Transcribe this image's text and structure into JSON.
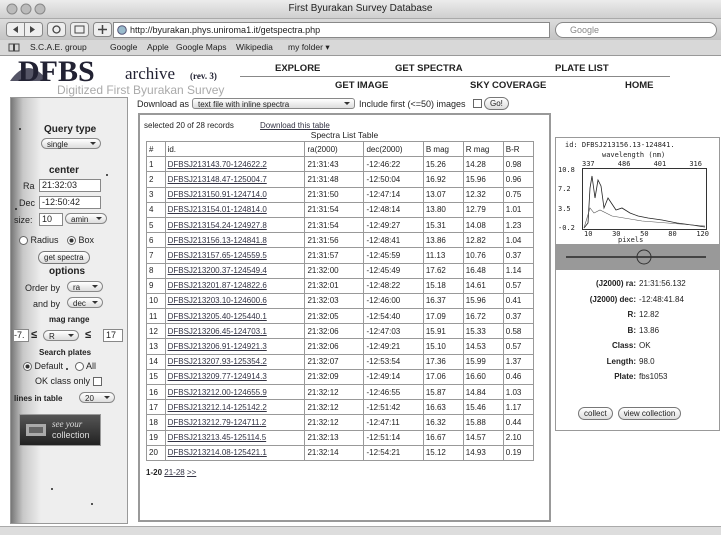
{
  "browser": {
    "title": "First Byurakan Survey Database",
    "url": "http://byurakan.phys.uniroma1.it/getspectra.php",
    "search": "Google"
  },
  "bookmarks": [
    "S.C.A.E. group",
    "Google",
    "Apple",
    "Google Maps",
    "Wikipedia",
    "my folder ▾"
  ],
  "logo": {
    "name": "DFBS",
    "archive": "archive",
    "rev": "(rev. 3)",
    "subtitle": "Digitized First Byurakan Survey"
  },
  "nav": [
    "EXPLORE",
    "GET SPECTRA",
    "PLATE LIST",
    "GET IMAGE",
    "SKY COVERAGE",
    "HOME"
  ],
  "download": {
    "label": "Download as",
    "format": "text file with inline spectra",
    "include": "Include first (<=50) images",
    "go": "Go!"
  },
  "sidebar": {
    "query_type": "Query type",
    "query_value": "single",
    "center": "center",
    "ra_label": "Ra",
    "ra_value": "21:32:03",
    "dec_label": "Dec",
    "dec_value": "-12:50:42",
    "size_label": "size:",
    "size_value": "10",
    "size_unit": "amin",
    "radius": "Radius",
    "box": "Box",
    "get_spectra": "get spectra",
    "options": "options",
    "order_by": "Order by",
    "order_value": "ra",
    "and_by": "and by",
    "and_value": "dec",
    "mag_range": "mag range",
    "mag_min": "-7.",
    "le1": "≤",
    "mag_band": "R",
    "le2": "≤",
    "mag_max": "17",
    "search_plates": "Search plates",
    "default": "Default",
    "all": "All",
    "ok_class": "OK class only",
    "lines_label": "lines in table",
    "lines_value": "20",
    "collection_1": "see your",
    "collection_2": "collection"
  },
  "table": {
    "status": "selected 20 of 28 records",
    "download_link": "Download this table",
    "caption": "Spectra List Table",
    "headers": [
      "#",
      "id.",
      "ra(2000)",
      "dec(2000)",
      "B mag",
      "R mag",
      "B-R"
    ],
    "rows": [
      [
        "1",
        "DFBSJ213143.70-124622.2",
        "21:31:43",
        "-12:46:22",
        "15.26",
        "14.28",
        "0.98"
      ],
      [
        "2",
        "DFBSJ213148.47-125004.7",
        "21:31:48",
        "-12:50:04",
        "16.92",
        "15.96",
        "0.96"
      ],
      [
        "3",
        "DFBSJ213150.91-124714.0",
        "21:31:50",
        "-12:47:14",
        "13.07",
        "12.32",
        "0.75"
      ],
      [
        "4",
        "DFBSJ213154.01-124814.0",
        "21:31:54",
        "-12:48:14",
        "13.80",
        "12.79",
        "1.01"
      ],
      [
        "5",
        "DFBSJ213154.24-124927.8",
        "21:31:54",
        "-12:49:27",
        "15.31",
        "14.08",
        "1.23"
      ],
      [
        "6",
        "DFBSJ213156.13-124841.8",
        "21:31:56",
        "-12:48:41",
        "13.86",
        "12.82",
        "1.04"
      ],
      [
        "7",
        "DFBSJ213157.65-124559.5",
        "21:31:57",
        "-12:45:59",
        "11.13",
        "10.76",
        "0.37"
      ],
      [
        "8",
        "DFBSJ213200.37-124549.4",
        "21:32:00",
        "-12:45:49",
        "17.62",
        "16.48",
        "1.14"
      ],
      [
        "9",
        "DFBSJ213201.87-124822.6",
        "21:32:01",
        "-12:48:22",
        "15.18",
        "14.61",
        "0.57"
      ],
      [
        "10",
        "DFBSJ213203.10-124600.6",
        "21:32:03",
        "-12:46:00",
        "16.37",
        "15.96",
        "0.41"
      ],
      [
        "11",
        "DFBSJ213205.40-125440.1",
        "21:32:05",
        "-12:54:40",
        "17.09",
        "16.72",
        "0.37"
      ],
      [
        "12",
        "DFBSJ213206.45-124703.1",
        "21:32:06",
        "-12:47:03",
        "15.91",
        "15.33",
        "0.58"
      ],
      [
        "13",
        "DFBSJ213206.91-124921.3",
        "21:32:06",
        "-12:49:21",
        "15.10",
        "14.53",
        "0.57"
      ],
      [
        "14",
        "DFBSJ213207.93-125354.2",
        "21:32:07",
        "-12:53:54",
        "17.36",
        "15.99",
        "1.37"
      ],
      [
        "15",
        "DFBSJ213209.77-124914.3",
        "21:32:09",
        "-12:49:14",
        "17.06",
        "16.60",
        "0.46"
      ],
      [
        "16",
        "DFBSJ213212.00-124655.9",
        "21:32:12",
        "-12:46:55",
        "15.87",
        "14.84",
        "1.03"
      ],
      [
        "17",
        "DFBSJ213212.14-125142.2",
        "21:32:12",
        "-12:51:42",
        "16.63",
        "15.46",
        "1.17"
      ],
      [
        "18",
        "DFBSJ213212.79-124711.2",
        "21:32:12",
        "-12:47:11",
        "16.32",
        "15.88",
        "0.44"
      ],
      [
        "19",
        "DFBSJ213213.45-125114.5",
        "21:32:13",
        "-12:51:14",
        "16.67",
        "14.57",
        "2.10"
      ],
      [
        "20",
        "DFBSJ213214.08-125421.1",
        "21:32:14",
        "-12:54:21",
        "15.12",
        "14.93",
        "0.19"
      ]
    ]
  },
  "pagination": [
    "1-20",
    "21-28",
    ">>"
  ],
  "details": {
    "spectrum_id": "id: DFBSJ213156.13-124841.",
    "wavelength_label": "wavelength (nm)",
    "wavelength_ticks": [
      "337",
      "486",
      "401",
      "316"
    ],
    "y_ticks": [
      "10.8",
      "7.2",
      "3.5",
      "-0.2"
    ],
    "x_ticks": [
      "10",
      "30",
      "50",
      "80",
      "120"
    ],
    "x_label": "pixels",
    "fields": [
      {
        "label": "(J2000) ra:",
        "value": "21:31:56.132"
      },
      {
        "label": "(J2000) dec:",
        "value": "-12:48:41.84"
      },
      {
        "label": "R:",
        "value": "12.82"
      },
      {
        "label": "B:",
        "value": "13.86"
      },
      {
        "label": "Class:",
        "value": "OK"
      },
      {
        "label": "Length:",
        "value": "98.0"
      },
      {
        "label": "Plate:",
        "value": "fbs1053"
      }
    ],
    "buttons": [
      "collect",
      "view collection"
    ]
  }
}
